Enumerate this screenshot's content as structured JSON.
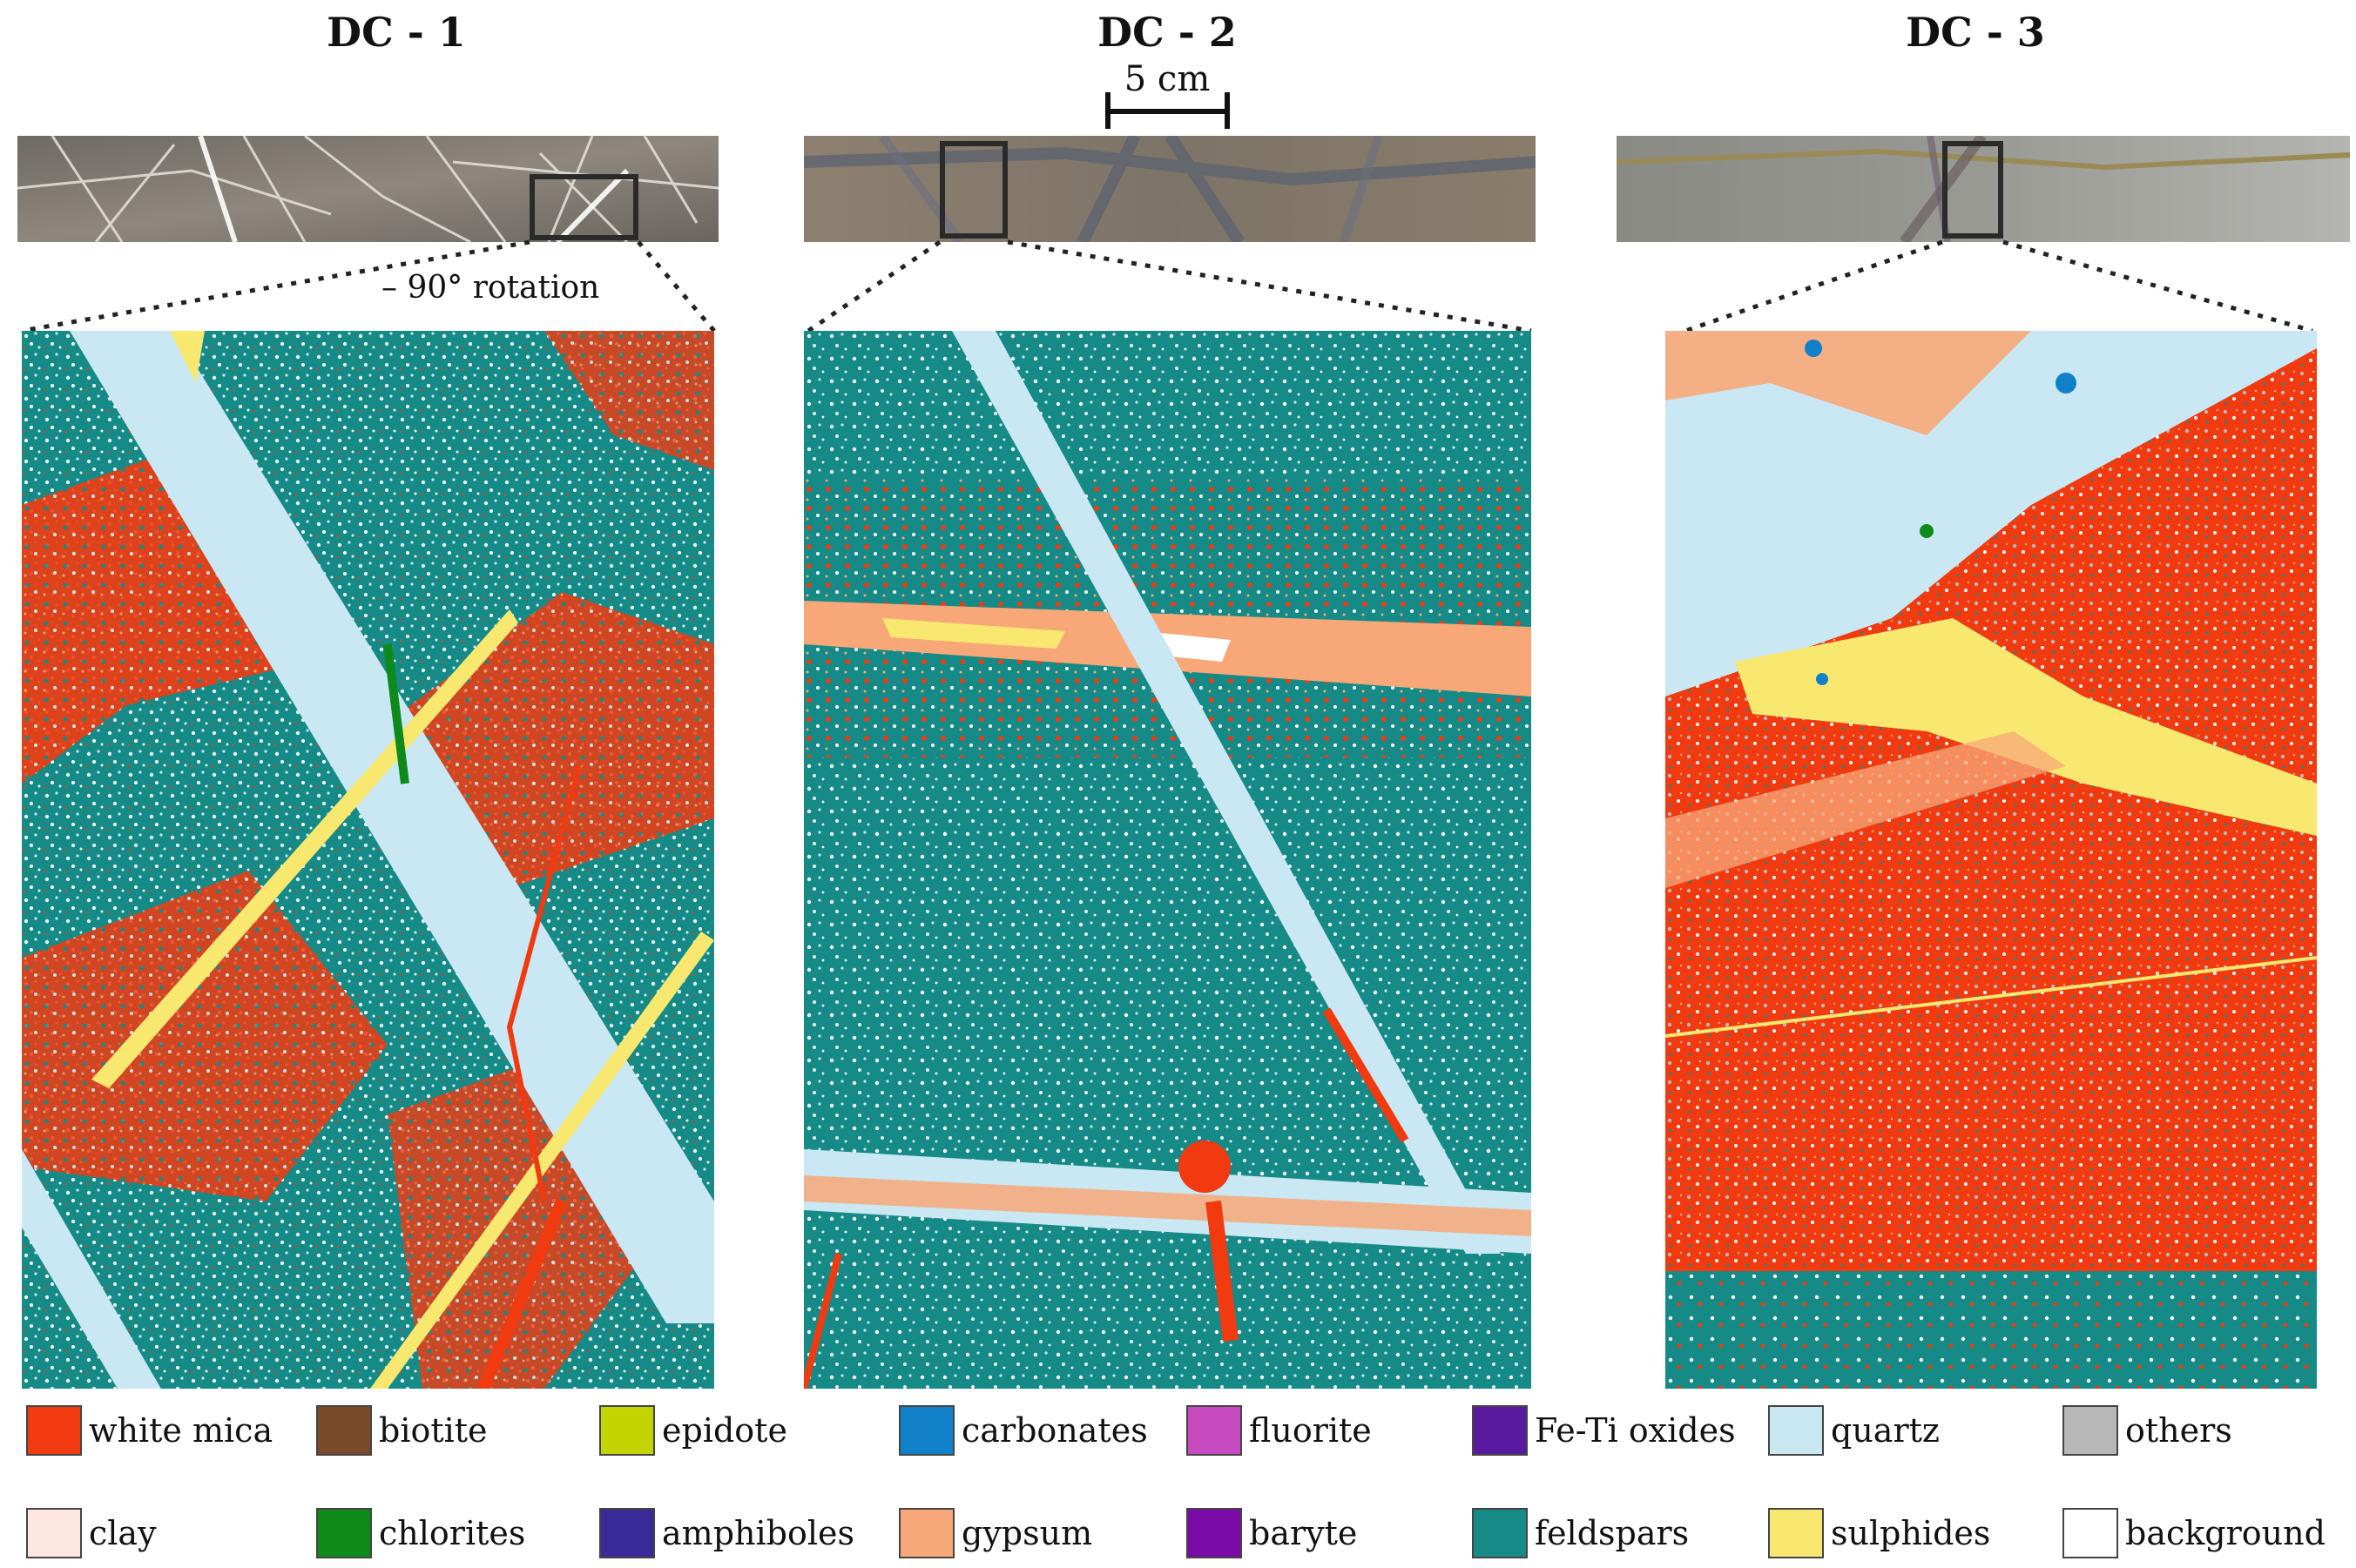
{
  "panels": [
    {
      "title": "DC - 1"
    },
    {
      "title": "DC - 2"
    },
    {
      "title": "DC - 3"
    }
  ],
  "scale_bar": {
    "label": "5 cm"
  },
  "rotation_note": "– 90° rotation",
  "legend": [
    {
      "label": "white mica",
      "color": "#f23a10"
    },
    {
      "label": "biotite",
      "color": "#7a4a2a"
    },
    {
      "label": "epidote",
      "color": "#c3d400"
    },
    {
      "label": "carbonates",
      "color": "#1180c8"
    },
    {
      "label": "fluorite",
      "color": "#c84ac0"
    },
    {
      "label": "Fe-Ti oxides",
      "color": "#5a1aa0"
    },
    {
      "label": "quartz",
      "color": "#c9e8f4"
    },
    {
      "label": "others",
      "color": "#b8b8b8"
    },
    {
      "label": "clay",
      "color": "#fde7e0"
    },
    {
      "label": "chlorites",
      "color": "#0e8a1a"
    },
    {
      "label": "amphiboles",
      "color": "#3a2a98"
    },
    {
      "label": "gypsum",
      "color": "#f8a878"
    },
    {
      "label": "baryte",
      "color": "#7a0aa8"
    },
    {
      "label": "feldspars",
      "color": "#158a86"
    },
    {
      "label": "sulphides",
      "color": "#f8e870"
    },
    {
      "label": "background",
      "color": "#ffffff"
    }
  ]
}
